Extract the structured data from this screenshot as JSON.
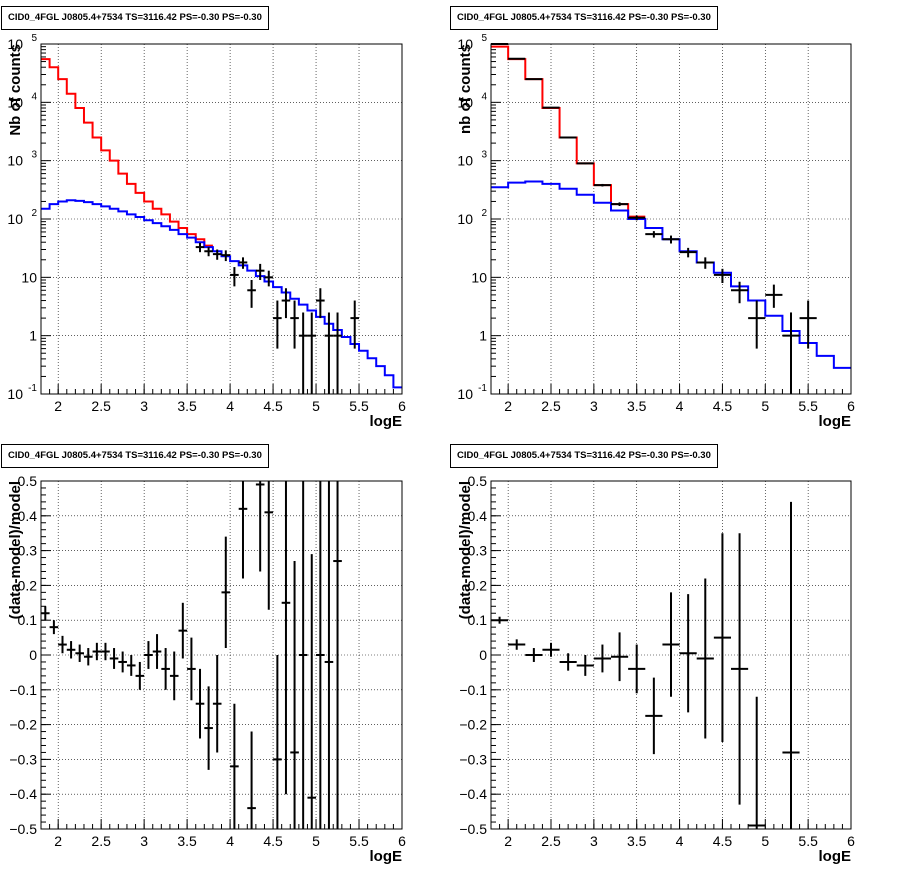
{
  "pads": [
    {
      "title": "CID0_4FGL J0805.4+7534 TS=3116.42 PS=-0.30 PS=-0.30"
    },
    {
      "title": "CID0_4FGL J0805.4+7534 TS=3116.42 PS=-0.30 PS=-0.30"
    },
    {
      "title": "CID0_4FGL J0805.4+7534 TS=3116.42 PS=-0.30 PS=-0.30"
    },
    {
      "title": "CID0_4FGL J0805.4+7534 TS=3116.42 PS=-0.30 PS=-0.30"
    }
  ],
  "chart_data": [
    {
      "type": "line",
      "title": "CID0_4FGL J0805.4+7534 TS=3116.42 PS=-0.30 PS=-0.30",
      "xlabel": "logE",
      "ylabel": "Nb of counts",
      "log_y": true,
      "grid": true,
      "xlim": [
        1.8,
        6
      ],
      "ylim": [
        0.1,
        100000
      ],
      "xticks": [
        2,
        2.5,
        3,
        3.5,
        4,
        4.5,
        5,
        5.5,
        6
      ],
      "xtick_labels": [
        "2",
        "2.5",
        "3",
        "3.5",
        "4",
        "4.5",
        "5",
        "5.5",
        "6"
      ],
      "ytick_labels": [
        "10^-1",
        "1",
        "10",
        "10^2",
        "10^3",
        "10^4",
        "10^5"
      ],
      "series": [
        {
          "color": "#ff0000",
          "kind": "step",
          "bin_width": 0.1,
          "x": [
            1.8,
            1.9,
            2.0,
            2.1,
            2.2,
            2.3,
            2.4,
            2.5,
            2.6,
            2.7,
            2.8,
            2.9,
            3.0,
            3.1,
            3.2,
            3.3,
            3.4,
            3.5,
            3.6,
            3.7
          ],
          "values": [
            55000,
            40000,
            25000,
            14000,
            8000,
            4500,
            2500,
            1500,
            1000,
            600,
            400,
            280,
            200,
            150,
            120,
            90,
            70,
            55,
            45,
            35
          ]
        },
        {
          "color": "#0000ff",
          "kind": "step",
          "bin_width": 0.1,
          "x": [
            1.8,
            1.9,
            2.0,
            2.1,
            2.2,
            2.3,
            2.4,
            2.5,
            2.6,
            2.7,
            2.8,
            2.9,
            3.0,
            3.1,
            3.2,
            3.3,
            3.4,
            3.5,
            3.6,
            3.7,
            3.8,
            3.9,
            4.0,
            4.1,
            4.2,
            4.3,
            4.4,
            4.5,
            4.6,
            4.7,
            4.8,
            4.9,
            5.0,
            5.1,
            5.2,
            5.3,
            5.4,
            5.5,
            5.6,
            5.7,
            5.8,
            5.9
          ],
          "values": [
            150,
            180,
            200,
            210,
            205,
            195,
            180,
            165,
            150,
            135,
            120,
            108,
            95,
            85,
            75,
            65,
            55,
            48,
            40,
            33,
            28,
            23,
            19,
            16,
            13,
            10.5,
            8.5,
            6.8,
            5.5,
            4.3,
            3.4,
            2.7,
            2.1,
            1.6,
            1.25,
            0.95,
            0.72,
            0.55,
            0.41,
            0.3,
            0.21,
            0.13
          ]
        },
        {
          "color": "#000000",
          "kind": "points",
          "x": [
            3.65,
            3.75,
            3.85,
            3.95,
            4.05,
            4.15,
            4.25,
            4.35,
            4.45,
            4.55,
            4.65,
            4.75,
            4.85,
            4.95,
            5.05,
            5.15,
            5.25,
            5.45
          ],
          "values": [
            33,
            28,
            25,
            24,
            11,
            18,
            6,
            13,
            10,
            2,
            4,
            2,
            1,
            1,
            4,
            1,
            1,
            2
          ],
          "x_err": 0.05,
          "y_err_low": [
            6,
            5,
            5,
            5,
            4,
            4,
            3,
            4,
            3,
            1.4,
            2,
            1.4,
            0.9,
            0.9,
            2,
            0.9,
            0.9,
            1.4
          ],
          "y_err_high": [
            6,
            5,
            5,
            5,
            4,
            4,
            3,
            4,
            3,
            2,
            2.5,
            2,
            1.5,
            1.5,
            2.5,
            1.5,
            1.5,
            2
          ]
        }
      ]
    },
    {
      "type": "line",
      "title": "CID0_4FGL J0805.4+7534 TS=3116.42 PS=-0.30 PS=-0.30",
      "xlabel": "logE",
      "ylabel": "nb of counts",
      "log_y": true,
      "grid": true,
      "xlim": [
        1.8,
        6
      ],
      "ylim": [
        0.1,
        100000
      ],
      "xticks": [
        2,
        2.5,
        3,
        3.5,
        4,
        4.5,
        5,
        5.5,
        6
      ],
      "xtick_labels": [
        "2",
        "2.5",
        "3",
        "3.5",
        "4",
        "4.5",
        "5",
        "5.5",
        "6"
      ],
      "ytick_labels": [
        "10^-1",
        "1",
        "10",
        "10^2",
        "10^3",
        "10^4",
        "10^5"
      ],
      "series": [
        {
          "color": "#ff0000",
          "kind": "step",
          "bin_width": 0.2,
          "x": [
            1.8,
            2.0,
            2.2,
            2.4,
            2.6,
            2.8,
            3.0,
            3.2,
            3.4
          ],
          "values": [
            90000,
            55000,
            25000,
            8000,
            2500,
            900,
            380,
            180,
            110
          ]
        },
        {
          "color": "#0000ff",
          "kind": "step",
          "bin_width": 0.2,
          "x": [
            1.8,
            2.0,
            2.2,
            2.4,
            2.6,
            2.8,
            3.0,
            3.2,
            3.4,
            3.6,
            3.8,
            4.0,
            4.2,
            4.4,
            4.6,
            4.8,
            5.0,
            5.2,
            5.4,
            5.6,
            5.8
          ],
          "values": [
            350,
            420,
            440,
            400,
            330,
            260,
            190,
            140,
            100,
            70,
            45,
            28,
            18,
            12,
            7,
            4,
            2.2,
            1.2,
            0.75,
            0.45,
            0.28
          ]
        },
        {
          "color": "#000000",
          "kind": "points",
          "x": [
            1.9,
            2.1,
            2.3,
            2.5,
            2.7,
            2.9,
            3.1,
            3.3,
            3.5,
            3.7,
            3.9,
            4.1,
            4.3,
            4.5,
            4.7,
            4.9,
            5.1,
            5.3,
            5.5
          ],
          "values": [
            100000,
            56000,
            25000,
            8100,
            2500,
            900,
            380,
            180,
            105,
            55,
            45,
            27,
            18,
            11,
            6,
            2,
            5,
            1,
            2
          ],
          "x_err": 0.1,
          "y_err_low": [
            300,
            240,
            160,
            90,
            50,
            30,
            19,
            13,
            10,
            7,
            7,
            5,
            4,
            3,
            2.4,
            1.4,
            2,
            0.9,
            1.4
          ],
          "y_err_high": [
            300,
            240,
            160,
            90,
            50,
            30,
            19,
            13,
            10,
            7,
            7,
            5,
            4,
            3,
            2.4,
            2,
            2.5,
            1.5,
            2
          ]
        }
      ]
    },
    {
      "type": "scatter",
      "title": "CID0_4FGL J0805.4+7534 TS=3116.42 PS=-0.30 PS=-0.30",
      "xlabel": "logE",
      "ylabel": "(data-model)/model",
      "grid": true,
      "xlim": [
        1.8,
        6
      ],
      "ylim": [
        -0.5,
        0.5
      ],
      "xticks": [
        2,
        2.5,
        3,
        3.5,
        4,
        4.5,
        5,
        5.5,
        6
      ],
      "xtick_labels": [
        "2",
        "2.5",
        "3",
        "3.5",
        "4",
        "4.5",
        "5",
        "5.5",
        "6"
      ],
      "yticks": [
        -0.5,
        -0.4,
        -0.3,
        -0.2,
        -0.1,
        0,
        0.1,
        0.2,
        0.3,
        0.4,
        0.5
      ],
      "ytick_labels": [
        "−0.5",
        "−0.4",
        "−0.3",
        "−0.2",
        "−0.1",
        "0",
        "0.1",
        "0.2",
        "0.3",
        "0.4",
        "0.5"
      ],
      "series": [
        {
          "color": "#000000",
          "kind": "points",
          "x_err": 0.05,
          "x": [
            1.85,
            1.95,
            2.05,
            2.15,
            2.25,
            2.35,
            2.45,
            2.55,
            2.65,
            2.75,
            2.85,
            2.95,
            3.05,
            3.15,
            3.25,
            3.35,
            3.45,
            3.55,
            3.65,
            3.75,
            3.85,
            3.95,
            4.05,
            4.15,
            4.25,
            4.35,
            4.45,
            4.55,
            4.65,
            4.75,
            4.85,
            4.95,
            5.05,
            5.15,
            5.25
          ],
          "values": [
            0.12,
            0.08,
            0.03,
            0.015,
            0.005,
            -0.005,
            0.01,
            0.01,
            -0.01,
            -0.02,
            -0.03,
            -0.06,
            0.0,
            0.01,
            -0.04,
            -0.06,
            0.07,
            -0.04,
            -0.14,
            -0.21,
            -0.14,
            0.18,
            -0.32,
            0.42,
            -0.44,
            0.49,
            0.41,
            -0.3,
            0.15,
            -0.28,
            0.0,
            -0.41,
            0.0,
            -0.02,
            0.27
          ],
          "y_err": [
            0.02,
            0.02,
            0.025,
            0.025,
            0.025,
            0.025,
            0.025,
            0.025,
            0.03,
            0.03,
            0.03,
            0.04,
            0.04,
            0.05,
            0.06,
            0.07,
            0.08,
            0.09,
            0.1,
            0.12,
            0.14,
            0.16,
            0.18,
            0.2,
            0.22,
            0.25,
            0.28,
            0.3,
            0.55,
            0.55,
            0.7,
            0.7,
            0.9,
            0.9,
            0.9
          ]
        }
      ]
    },
    {
      "type": "scatter",
      "title": "CID0_4FGL J0805.4+7534 TS=3116.42 PS=-0.30 PS=-0.30",
      "xlabel": "logE",
      "ylabel": "(data-model)/model",
      "grid": true,
      "xlim": [
        1.8,
        6
      ],
      "ylim": [
        -0.5,
        0.5
      ],
      "xticks": [
        2,
        2.5,
        3,
        3.5,
        4,
        4.5,
        5,
        5.5,
        6
      ],
      "xtick_labels": [
        "2",
        "2.5",
        "3",
        "3.5",
        "4",
        "4.5",
        "5",
        "5.5",
        "6"
      ],
      "yticks": [
        -0.5,
        -0.4,
        -0.3,
        -0.2,
        -0.1,
        0,
        0.1,
        0.2,
        0.3,
        0.4,
        0.5
      ],
      "ytick_labels": [
        "−0.5",
        "−0.4",
        "−0.3",
        "−0.2",
        "−0.1",
        "0",
        "0.1",
        "0.2",
        "0.3",
        "0.4",
        "0.5"
      ],
      "series": [
        {
          "color": "#000000",
          "kind": "points",
          "x_err": 0.1,
          "x": [
            1.9,
            2.1,
            2.3,
            2.5,
            2.7,
            2.9,
            3.1,
            3.3,
            3.5,
            3.7,
            3.9,
            4.1,
            4.3,
            4.5,
            4.7,
            4.9,
            5.3
          ],
          "values": [
            0.1,
            0.03,
            0.0,
            0.015,
            -0.02,
            -0.03,
            -0.01,
            -0.005,
            -0.04,
            -0.175,
            0.03,
            0.005,
            -0.01,
            0.05,
            -0.04,
            -0.49,
            -0.28
          ],
          "y_err": [
            0.01,
            0.015,
            0.02,
            0.02,
            0.025,
            0.03,
            0.04,
            0.07,
            0.07,
            0.11,
            0.15,
            0.17,
            0.23,
            0.3,
            0.39,
            0.37,
            0.72
          ]
        }
      ]
    }
  ]
}
